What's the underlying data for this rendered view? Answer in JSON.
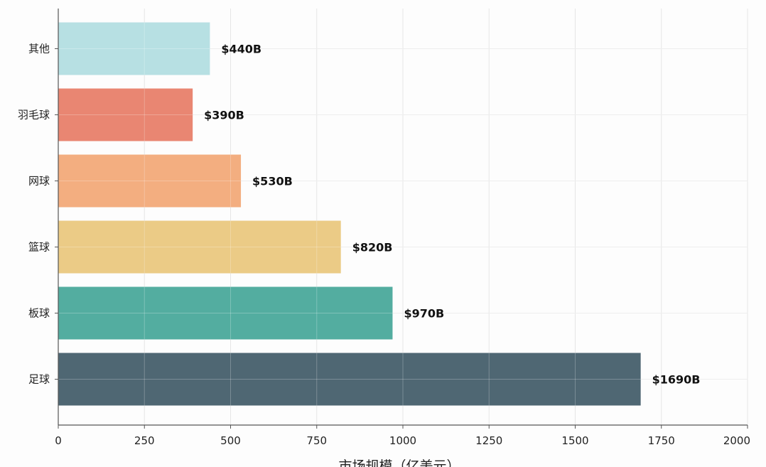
{
  "chart_data": {
    "type": "bar",
    "orientation": "horizontal",
    "categories": [
      "足球",
      "板球",
      "篮球",
      "网球",
      "羽毛球",
      "其他"
    ],
    "values": [
      1690,
      970,
      820,
      530,
      390,
      440
    ],
    "data_labels": [
      "$1690B",
      "$970B",
      "$820B",
      "$530B",
      "$390B",
      "$440B"
    ],
    "colors": [
      "#465f6b",
      "#4aa99b",
      "#eac87f",
      "#f2aa79",
      "#e8806a",
      "#b3dee1"
    ],
    "xlabel": "市场规模（亿美元）",
    "ylabel": "",
    "xlim": [
      0,
      2000
    ],
    "xticks": [
      0,
      250,
      500,
      750,
      1000,
      1250,
      1500,
      1750,
      2000
    ],
    "xtick_labels": [
      "0",
      "250",
      "500",
      "750",
      "1000",
      "1250",
      "1500",
      "1750",
      "2000"
    ],
    "grid": true
  }
}
